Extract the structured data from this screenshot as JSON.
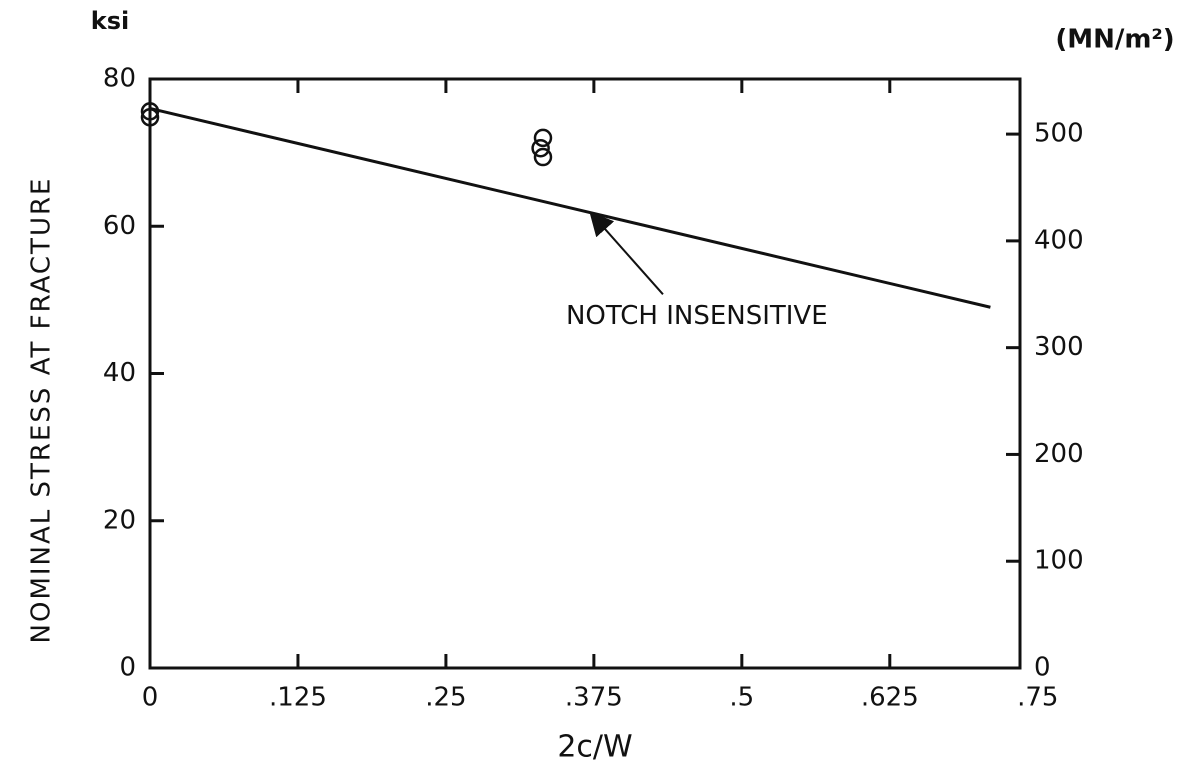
{
  "chart_data": {
    "type": "line",
    "y_unit_label": "ksi",
    "y2_unit_label": "(MN/m²)",
    "ylabel": "NOMINAL STRESS AT FRACTURE",
    "xlabel": "2c/W",
    "xlim": [
      0,
      0.735
    ],
    "xticks": [
      0,
      {
        "value": 0.125,
        "label": ".125"
      },
      {
        "value": 0.25,
        "label": ".25"
      },
      {
        "value": 0.375,
        "label": ".375"
      },
      {
        "value": 0.5,
        "label": ".5"
      },
      {
        "value": 0.625,
        "label": ".625"
      },
      {
        "value": 0.75,
        "label": ".75"
      }
    ],
    "ylim": [
      0,
      80
    ],
    "yticks": [
      0,
      20,
      40,
      60,
      80
    ],
    "y2lim": [
      0,
      551.6
    ],
    "y2ticks": [
      0,
      100,
      200,
      300,
      400,
      500
    ],
    "series": [
      {
        "x": [
          0,
          0.71
        ],
        "values": [
          76,
          49
        ],
        "color": "#111111",
        "marker": "none"
      },
      {
        "x": [
          0,
          0,
          0.332,
          0.33,
          0.332
        ],
        "values": [
          75.6,
          74.8,
          72,
          70.6,
          69.4
        ],
        "color": "#111111",
        "marker": "circle"
      }
    ],
    "annotations": [
      {
        "text": "NOTCH INSENSITIVE",
        "x": 0.37,
        "y": 62.3
      }
    ]
  }
}
